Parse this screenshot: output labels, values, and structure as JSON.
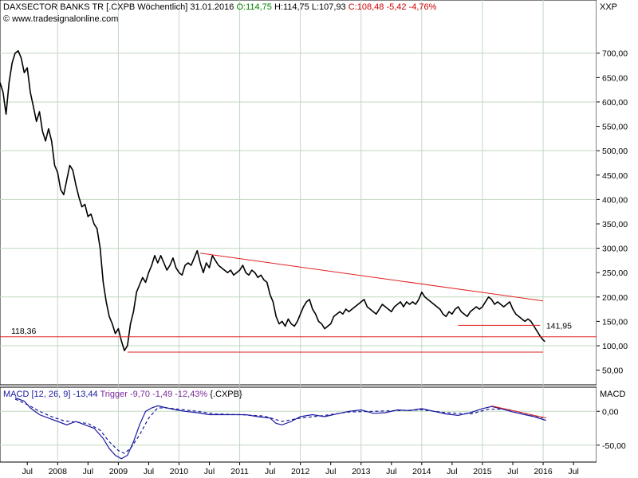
{
  "header": {
    "instrument": "DAXSECTOR BANKS TR [.CXPB  Wöchentlich] 31.01.2016",
    "open": "O:114,75",
    "high": "H:114,75",
    "low": "L:107,93",
    "close_change": "C:108,48 -5,42 -4,76%",
    "currency": "XXP",
    "source": "© www.tradesignalonline.com"
  },
  "chart_data": [
    {
      "type": "candlestick",
      "title": "DAXSECTOR BANKS TR [.CXPB  Wöchentlich] 31.01.2016",
      "unit": "XXP",
      "ylim": [
        20,
        760
      ],
      "yticks": [
        50,
        100,
        150,
        200,
        250,
        300,
        350,
        400,
        450,
        500,
        550,
        600,
        650,
        700
      ],
      "ytick_labels": [
        "50,00",
        "100,00",
        "150,00",
        "200,00",
        "250,00",
        "300,00",
        "350,00",
        "400,00",
        "450,00",
        "500,00",
        "550,00",
        "600,00",
        "650,00",
        "700,00"
      ],
      "x_labels": [
        "Jul",
        "2008",
        "Jul",
        "2009",
        "Jul",
        "2010",
        "Jul",
        "2011",
        "Jul",
        "2012",
        "Jul",
        "2013",
        "Jul",
        "2014",
        "Jul",
        "2015",
        "Jul",
        "2016",
        "Jul"
      ],
      "x_label_dates": [
        2007.5,
        2008.0,
        2008.5,
        2009.0,
        2009.5,
        2010.0,
        2010.5,
        2011.0,
        2011.5,
        2012.0,
        2012.5,
        2013.0,
        2013.5,
        2014.0,
        2014.5,
        2015.0,
        2015.5,
        2016.0,
        2016.5
      ],
      "xlim": [
        2007.05,
        2016.88
      ],
      "grid": true,
      "close_path": [
        [
          2007.05,
          640
        ],
        [
          2007.1,
          620
        ],
        [
          2007.15,
          575
        ],
        [
          2007.2,
          640
        ],
        [
          2007.25,
          680
        ],
        [
          2007.3,
          700
        ],
        [
          2007.35,
          705
        ],
        [
          2007.4,
          690
        ],
        [
          2007.45,
          660
        ],
        [
          2007.5,
          670
        ],
        [
          2007.55,
          620
        ],
        [
          2007.6,
          590
        ],
        [
          2007.65,
          560
        ],
        [
          2007.7,
          580
        ],
        [
          2007.75,
          540
        ],
        [
          2007.8,
          520
        ],
        [
          2007.85,
          545
        ],
        [
          2007.9,
          520
        ],
        [
          2007.95,
          470
        ],
        [
          2008.0,
          455
        ],
        [
          2008.05,
          420
        ],
        [
          2008.1,
          410
        ],
        [
          2008.15,
          440
        ],
        [
          2008.2,
          470
        ],
        [
          2008.25,
          460
        ],
        [
          2008.3,
          430
        ],
        [
          2008.35,
          405
        ],
        [
          2008.4,
          385
        ],
        [
          2008.45,
          390
        ],
        [
          2008.5,
          365
        ],
        [
          2008.55,
          370
        ],
        [
          2008.6,
          350
        ],
        [
          2008.65,
          340
        ],
        [
          2008.7,
          300
        ],
        [
          2008.75,
          230
        ],
        [
          2008.8,
          190
        ],
        [
          2008.85,
          160
        ],
        [
          2008.9,
          145
        ],
        [
          2008.95,
          125
        ],
        [
          2009.0,
          135
        ],
        [
          2009.05,
          110
        ],
        [
          2009.1,
          90
        ],
        [
          2009.15,
          100
        ],
        [
          2009.2,
          145
        ],
        [
          2009.25,
          170
        ],
        [
          2009.3,
          210
        ],
        [
          2009.35,
          225
        ],
        [
          2009.4,
          240
        ],
        [
          2009.45,
          230
        ],
        [
          2009.5,
          250
        ],
        [
          2009.55,
          265
        ],
        [
          2009.6,
          285
        ],
        [
          2009.65,
          270
        ],
        [
          2009.7,
          285
        ],
        [
          2009.75,
          270
        ],
        [
          2009.8,
          255
        ],
        [
          2009.85,
          265
        ],
        [
          2009.9,
          280
        ],
        [
          2009.95,
          260
        ],
        [
          2010.0,
          250
        ],
        [
          2010.05,
          245
        ],
        [
          2010.1,
          265
        ],
        [
          2010.15,
          270
        ],
        [
          2010.2,
          265
        ],
        [
          2010.25,
          280
        ],
        [
          2010.3,
          295
        ],
        [
          2010.35,
          270
        ],
        [
          2010.4,
          250
        ],
        [
          2010.45,
          270
        ],
        [
          2010.5,
          260
        ],
        [
          2010.55,
          285
        ],
        [
          2010.6,
          275
        ],
        [
          2010.65,
          265
        ],
        [
          2010.7,
          260
        ],
        [
          2010.75,
          255
        ],
        [
          2010.8,
          250
        ],
        [
          2010.85,
          255
        ],
        [
          2010.9,
          245
        ],
        [
          2010.95,
          250
        ],
        [
          2011.0,
          255
        ],
        [
          2011.05,
          265
        ],
        [
          2011.1,
          250
        ],
        [
          2011.15,
          245
        ],
        [
          2011.2,
          255
        ],
        [
          2011.25,
          250
        ],
        [
          2011.3,
          240
        ],
        [
          2011.35,
          245
        ],
        [
          2011.4,
          235
        ],
        [
          2011.45,
          230
        ],
        [
          2011.5,
          205
        ],
        [
          2011.55,
          190
        ],
        [
          2011.6,
          160
        ],
        [
          2011.65,
          145
        ],
        [
          2011.7,
          150
        ],
        [
          2011.75,
          140
        ],
        [
          2011.8,
          155
        ],
        [
          2011.85,
          145
        ],
        [
          2011.9,
          140
        ],
        [
          2011.95,
          150
        ],
        [
          2012.0,
          165
        ],
        [
          2012.05,
          180
        ],
        [
          2012.1,
          190
        ],
        [
          2012.15,
          195
        ],
        [
          2012.2,
          175
        ],
        [
          2012.25,
          165
        ],
        [
          2012.3,
          150
        ],
        [
          2012.35,
          145
        ],
        [
          2012.4,
          135
        ],
        [
          2012.45,
          140
        ],
        [
          2012.5,
          145
        ],
        [
          2012.55,
          160
        ],
        [
          2012.6,
          165
        ],
        [
          2012.65,
          170
        ],
        [
          2012.7,
          165
        ],
        [
          2012.75,
          175
        ],
        [
          2012.8,
          170
        ],
        [
          2012.85,
          175
        ],
        [
          2012.9,
          180
        ],
        [
          2012.95,
          185
        ],
        [
          2013.0,
          190
        ],
        [
          2013.05,
          195
        ],
        [
          2013.1,
          180
        ],
        [
          2013.15,
          175
        ],
        [
          2013.2,
          170
        ],
        [
          2013.25,
          165
        ],
        [
          2013.3,
          175
        ],
        [
          2013.35,
          185
        ],
        [
          2013.4,
          180
        ],
        [
          2013.45,
          175
        ],
        [
          2013.5,
          170
        ],
        [
          2013.55,
          180
        ],
        [
          2013.6,
          185
        ],
        [
          2013.65,
          190
        ],
        [
          2013.7,
          180
        ],
        [
          2013.75,
          190
        ],
        [
          2013.8,
          185
        ],
        [
          2013.85,
          190
        ],
        [
          2013.9,
          185
        ],
        [
          2013.95,
          195
        ],
        [
          2014.0,
          210
        ],
        [
          2014.05,
          200
        ],
        [
          2014.1,
          195
        ],
        [
          2014.15,
          190
        ],
        [
          2014.2,
          185
        ],
        [
          2014.25,
          180
        ],
        [
          2014.3,
          175
        ],
        [
          2014.35,
          165
        ],
        [
          2014.4,
          160
        ],
        [
          2014.45,
          170
        ],
        [
          2014.5,
          165
        ],
        [
          2014.55,
          175
        ],
        [
          2014.6,
          180
        ],
        [
          2014.65,
          170
        ],
        [
          2014.7,
          165
        ],
        [
          2014.75,
          160
        ],
        [
          2014.8,
          170
        ],
        [
          2014.85,
          175
        ],
        [
          2014.9,
          180
        ],
        [
          2014.95,
          175
        ],
        [
          2015.0,
          180
        ],
        [
          2015.05,
          190
        ],
        [
          2015.1,
          200
        ],
        [
          2015.15,
          195
        ],
        [
          2015.2,
          185
        ],
        [
          2015.25,
          190
        ],
        [
          2015.3,
          185
        ],
        [
          2015.35,
          180
        ],
        [
          2015.4,
          185
        ],
        [
          2015.45,
          190
        ],
        [
          2015.5,
          175
        ],
        [
          2015.55,
          165
        ],
        [
          2015.6,
          160
        ],
        [
          2015.65,
          155
        ],
        [
          2015.7,
          150
        ],
        [
          2015.75,
          155
        ],
        [
          2015.8,
          150
        ],
        [
          2015.85,
          140
        ],
        [
          2015.9,
          130
        ],
        [
          2015.95,
          120
        ],
        [
          2016.0,
          112
        ],
        [
          2016.03,
          108.48
        ]
      ],
      "horizontal_lines": [
        {
          "value": 118.36,
          "label": "118,36"
        }
      ],
      "annotations": [
        {
          "text": "141,95",
          "x": 2016.05,
          "y": 141.95
        }
      ],
      "trendlines": [
        {
          "from": [
            2010.35,
            290
          ],
          "to": [
            2016.0,
            192
          ]
        },
        {
          "from": [
            2009.15,
            87
          ],
          "to": [
            2016.0,
            87
          ]
        },
        {
          "from": [
            2014.6,
            141.95
          ],
          "to": [
            2015.95,
            141.95
          ]
        }
      ],
      "colors": {
        "price": "#000000",
        "lines": "#e02020",
        "grid": "#c0d8c0"
      }
    },
    {
      "type": "line",
      "title": "MACD [12, 26, 9] -13,44",
      "legend": {
        "macd": "MACD [12, 26, 9] -13,44",
        "trigger": "Trigger -9,70",
        "diff": "-1,49 -12,43%",
        "symbol": "{.CXPB}"
      },
      "unit": "MACD",
      "ylim": [
        -75,
        25
      ],
      "yticks": [
        -50,
        0
      ],
      "ytick_labels": [
        "-50,00",
        "0,00"
      ],
      "series": [
        {
          "name": "MACD [12, 26, 9]",
          "color": "#1a1aa0",
          "points": [
            [
              2007.3,
              20
            ],
            [
              2007.45,
              15
            ],
            [
              2007.55,
              5
            ],
            [
              2007.7,
              -5
            ],
            [
              2007.85,
              -10
            ],
            [
              2008.0,
              -15
            ],
            [
              2008.15,
              -20
            ],
            [
              2008.3,
              -15
            ],
            [
              2008.45,
              -20
            ],
            [
              2008.6,
              -25
            ],
            [
              2008.75,
              -40
            ],
            [
              2008.85,
              -55
            ],
            [
              2008.95,
              -65
            ],
            [
              2009.05,
              -70
            ],
            [
              2009.15,
              -65
            ],
            [
              2009.25,
              -45
            ],
            [
              2009.35,
              -20
            ],
            [
              2009.45,
              0
            ],
            [
              2009.55,
              5
            ],
            [
              2009.65,
              8
            ],
            [
              2009.8,
              5
            ],
            [
              2009.95,
              2
            ],
            [
              2010.1,
              0
            ],
            [
              2010.3,
              -2
            ],
            [
              2010.5,
              -5
            ],
            [
              2010.7,
              -5
            ],
            [
              2010.9,
              -5
            ],
            [
              2011.1,
              -5
            ],
            [
              2011.3,
              -8
            ],
            [
              2011.5,
              -10
            ],
            [
              2011.6,
              -18
            ],
            [
              2011.7,
              -20
            ],
            [
              2011.85,
              -15
            ],
            [
              2012.0,
              -8
            ],
            [
              2012.2,
              -5
            ],
            [
              2012.4,
              -8
            ],
            [
              2012.6,
              -4
            ],
            [
              2012.8,
              0
            ],
            [
              2013.0,
              2
            ],
            [
              2013.2,
              -3
            ],
            [
              2013.4,
              -2
            ],
            [
              2013.6,
              2
            ],
            [
              2013.8,
              1
            ],
            [
              2014.0,
              4
            ],
            [
              2014.2,
              0
            ],
            [
              2014.4,
              -4
            ],
            [
              2014.6,
              -6
            ],
            [
              2014.8,
              -2
            ],
            [
              2015.0,
              4
            ],
            [
              2015.15,
              7
            ],
            [
              2015.3,
              4
            ],
            [
              2015.5,
              -1
            ],
            [
              2015.7,
              -5
            ],
            [
              2015.85,
              -8
            ],
            [
              2016.0,
              -12
            ],
            [
              2016.05,
              -13.44
            ]
          ]
        },
        {
          "name": "Trigger",
          "color": "#1a1aa0",
          "dashed": true,
          "points": [
            [
              2007.3,
              18
            ],
            [
              2007.5,
              10
            ],
            [
              2007.7,
              0
            ],
            [
              2007.9,
              -8
            ],
            [
              2008.1,
              -14
            ],
            [
              2008.3,
              -16
            ],
            [
              2008.5,
              -18
            ],
            [
              2008.7,
              -28
            ],
            [
              2008.85,
              -45
            ],
            [
              2009.0,
              -58
            ],
            [
              2009.1,
              -62
            ],
            [
              2009.2,
              -55
            ],
            [
              2009.35,
              -35
            ],
            [
              2009.5,
              -10
            ],
            [
              2009.65,
              5
            ],
            [
              2009.8,
              5
            ],
            [
              2010.0,
              3
            ],
            [
              2010.3,
              0
            ],
            [
              2010.6,
              -4
            ],
            [
              2011.0,
              -5
            ],
            [
              2011.4,
              -7
            ],
            [
              2011.7,
              -15
            ],
            [
              2012.0,
              -10
            ],
            [
              2012.4,
              -6
            ],
            [
              2012.8,
              -1
            ],
            [
              2013.2,
              0
            ],
            [
              2013.6,
              1
            ],
            [
              2014.0,
              2
            ],
            [
              2014.4,
              -2
            ],
            [
              2014.8,
              -4
            ],
            [
              2015.1,
              3
            ],
            [
              2015.4,
              3
            ],
            [
              2015.7,
              -3
            ],
            [
              2016.0,
              -9.7
            ]
          ]
        }
      ],
      "trendlines": [
        {
          "from": [
            2015.15,
            8
          ],
          "to": [
            2016.05,
            -10
          ]
        }
      ]
    }
  ]
}
